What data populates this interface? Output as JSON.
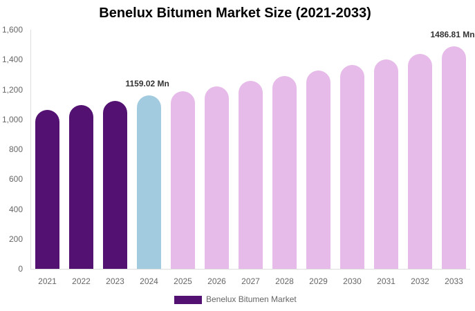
{
  "chart_data": {
    "type": "bar",
    "title": "Benelux Bitumen Market Size (2021-2033)",
    "xlabel": "",
    "ylabel": "",
    "ylim": [
      0,
      1600
    ],
    "yticks": [
      "0",
      "200",
      "400",
      "600",
      "800",
      "1,000",
      "1,200",
      "1,400",
      "1,600"
    ],
    "categories": [
      "2021",
      "2022",
      "2023",
      "2024",
      "2025",
      "2026",
      "2027",
      "2028",
      "2029",
      "2030",
      "2031",
      "2032",
      "2033"
    ],
    "series": [
      {
        "name": "Benelux Bitumen Market",
        "values": [
          1064,
          1096,
          1124,
          1159.02,
          1188,
          1221,
          1258,
          1290,
          1327,
          1364,
          1401,
          1438,
          1486.81
        ]
      }
    ],
    "bar_colors": [
      "#531172",
      "#531172",
      "#531172",
      "#a3cbe0",
      "#e7bbe9",
      "#e7bbe9",
      "#e7bbe9",
      "#e7bbe9",
      "#e7bbe9",
      "#e7bbe9",
      "#e7bbe9",
      "#e7bbe9",
      "#e7bbe9"
    ],
    "annotations": [
      {
        "category": "2024",
        "text": "1159.02 Mn"
      },
      {
        "category": "2033",
        "text": "1486.81 Mn"
      }
    ],
    "legend": {
      "label": "Benelux Bitumen Market",
      "color": "#531172",
      "position": "bottom"
    },
    "grid": false
  }
}
